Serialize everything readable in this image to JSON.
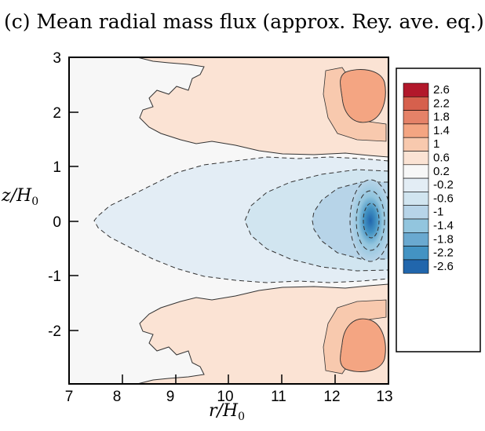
{
  "chart_data": {
    "type": "contour",
    "title": "(c) Mean radial mass flux (approx. Rey. ave. eq.).",
    "xlabel": "r/H",
    "xlabel_sub": "0",
    "ylabel": "z/H",
    "ylabel_sub": "0",
    "xlim": [
      7,
      13
    ],
    "ylim": [
      -3,
      3
    ],
    "xticks": [
      "7",
      "8",
      "9",
      "10",
      "11",
      "12",
      "13"
    ],
    "yticks": [
      "3",
      "2",
      "1",
      "0",
      "-1",
      "-2"
    ],
    "legend": {
      "position": "right",
      "levels": [
        "2.6",
        "2.2",
        "1.8",
        "1.4",
        "1",
        "0.6",
        "0.2",
        "-0.2",
        "-0.6",
        "-1",
        "-1.4",
        "-1.8",
        "-2.2",
        "-2.6"
      ],
      "colors": [
        "#b2182b",
        "#d6604d",
        "#e58268",
        "#f4a582",
        "#f8c9ae",
        "#fbe3d4",
        "#f7f7f7",
        "#e3edf5",
        "#d1e5f0",
        "#b7d4e8",
        "#92c5de",
        "#6aa9d0",
        "#4393c3",
        "#2166ac"
      ]
    },
    "field_description": {
      "positive_lobes_center_r": 12.6,
      "positive_lobes_center_z": [
        2.2,
        -2.2
      ],
      "positive_max": 1.8,
      "negative_core_center_r": 12.7,
      "negative_core_center_z": 0,
      "negative_min": -2.6
    }
  }
}
